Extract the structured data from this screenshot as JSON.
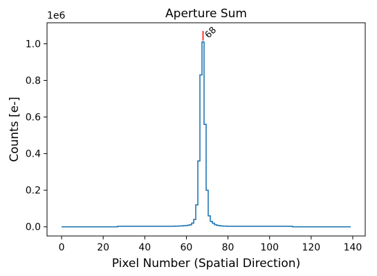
{
  "chart_data": {
    "type": "line",
    "drawstyle": "steps-mid",
    "title": "Aperture Sum",
    "xlabel": "Pixel Number (Spatial Direction)",
    "ylabel": "Counts [e-]",
    "y_offset_label": "1e6",
    "xlim": [
      -7,
      146
    ],
    "ylim": [
      -0.05,
      1.115
    ],
    "y_multiplier": 1000000,
    "xticks": [
      0,
      20,
      40,
      60,
      80,
      100,
      120,
      140
    ],
    "xtick_labels": [
      "0",
      "20",
      "40",
      "60",
      "80",
      "100",
      "120",
      "140"
    ],
    "yticks": [
      0.0,
      0.2,
      0.4,
      0.6,
      0.8,
      1.0
    ],
    "ytick_labels": [
      "0.0",
      "0.2",
      "0.4",
      "0.6",
      "0.8",
      "1.0"
    ],
    "grid": false,
    "line_color": "#1f77b4",
    "peak": {
      "x": 68,
      "y": 1.01,
      "label": "68",
      "marker_color": "#ff0000"
    },
    "series": [
      {
        "x": [
          0,
          54,
          55,
          56,
          57,
          58,
          59,
          60,
          61,
          62,
          63,
          64,
          65,
          66,
          67,
          68,
          69,
          70,
          71,
          72,
          73,
          74,
          75,
          76,
          77,
          78,
          79,
          80,
          81,
          82,
          83,
          139
        ],
        "y": [
          0.0,
          0.003,
          0.004,
          0.004,
          0.005,
          0.005,
          0.006,
          0.007,
          0.009,
          0.011,
          0.02,
          0.04,
          0.12,
          0.36,
          0.83,
          1.01,
          0.56,
          0.2,
          0.06,
          0.03,
          0.02,
          0.012,
          0.008,
          0.006,
          0.005,
          0.004,
          0.004,
          0.003,
          0.003,
          0.003,
          0.003,
          0.0
        ]
      }
    ]
  }
}
